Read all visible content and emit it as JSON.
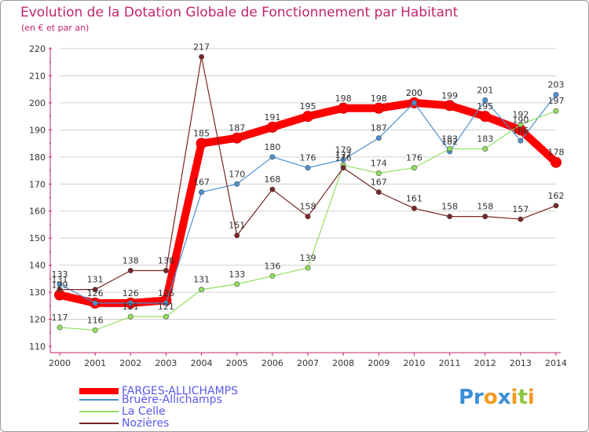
{
  "title": "Evolution de la Dotation Globale de Fonctionnement par Habitant",
  "subtitle": "(en € et par an)",
  "logo": {
    "p1": "Pr",
    "o": "o",
    "x": "x",
    "i": "i",
    "t": "t",
    "i2": "i"
  },
  "colors": {
    "title": "#c0246e",
    "axis": "#c0246e",
    "legend_text": "#5a5aee",
    "grid": "#d0d0d0"
  },
  "chart_data": {
    "type": "line",
    "title": "Evolution de la Dotation Globale de Fonctionnement par Habitant",
    "ylabel": "(en € et par an)",
    "xlabel": "",
    "x": [
      "2000",
      "2001",
      "2002",
      "2003",
      "2004",
      "2005",
      "2006",
      "2007",
      "2008",
      "2009",
      "2010",
      "2011",
      "2012",
      "2013",
      "2014"
    ],
    "ylim": [
      110,
      220
    ],
    "yticks": [
      110,
      120,
      130,
      140,
      150,
      160,
      170,
      180,
      190,
      200,
      210,
      220
    ],
    "grid": "horizontal",
    "series": [
      {
        "name": "FARGES-ALLICHAMPS",
        "color": "#ff0000",
        "bold": true,
        "values": [
          129,
          126,
          126,
          127,
          185,
          187,
          191,
          195,
          198,
          198,
          200,
          199,
          195,
          190,
          178
        ],
        "labels": [
          "",
          "",
          "",
          "",
          "185",
          "187",
          "191",
          "195",
          "198",
          "198",
          "",
          "199",
          "195",
          "",
          "178"
        ]
      },
      {
        "name": "Bruère-Allichamps",
        "color": "#4a90d0",
        "bold": false,
        "values": [
          133,
          126,
          126,
          126,
          167,
          170,
          180,
          176,
          179,
          187,
          200,
          182,
          201,
          186,
          203
        ],
        "labels": [
          "133",
          "126",
          "126",
          "126",
          "167",
          "170",
          "180",
          "176",
          "",
          "187",
          "200",
          "182",
          "201",
          "",
          "203"
        ]
      },
      {
        "name": "La Celle",
        "color": "#90e060",
        "bold": false,
        "values": [
          117,
          116,
          121,
          121,
          131,
          133,
          136,
          139,
          177,
          174,
          176,
          183,
          183,
          192,
          197
        ],
        "labels": [
          "117",
          "116",
          "121",
          "121",
          "131",
          "133",
          "136",
          "139",
          "177",
          "174",
          "176",
          "183",
          "183",
          "192",
          "197"
        ]
      },
      {
        "name": "Nozières",
        "color": "#7a2525",
        "bold": false,
        "values": [
          131,
          131,
          138,
          138,
          217,
          151,
          168,
          158,
          176,
          167,
          161,
          158,
          158,
          157,
          162
        ],
        "labels": [
          "",
          "131",
          "138",
          "138",
          "217",
          "151",
          "168",
          "158",
          "",
          "167",
          "161",
          "158",
          "158",
          "157",
          "162"
        ]
      }
    ],
    "extra_labels": [
      {
        "series": 0,
        "index": 0,
        "text": "129"
      },
      {
        "series": 0,
        "index": 10,
        "text": "200"
      },
      {
        "series": 0,
        "index": 13,
        "text": "190"
      },
      {
        "series": 1,
        "index": 8,
        "text": "179"
      },
      {
        "series": 1,
        "index": 13,
        "text": "186"
      },
      {
        "series": 3,
        "index": 0,
        "text": "131"
      },
      {
        "series": 3,
        "index": 8,
        "text": "176"
      }
    ]
  }
}
